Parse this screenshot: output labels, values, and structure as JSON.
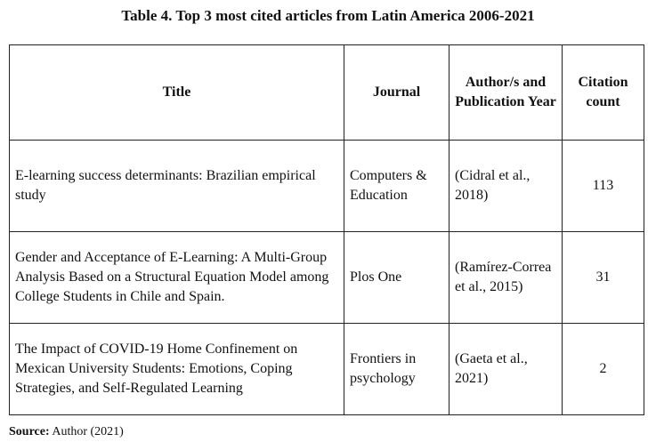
{
  "caption": "Table 4. Top 3 most cited articles from Latin America 2006-2021",
  "headers": [
    "Title",
    "Journal",
    "Author/s and Publication Year",
    "Citation count"
  ],
  "rows": [
    {
      "title": "E-learning success determinants: Brazilian empirical study",
      "journal": "Computers & Education",
      "author": "(Cidral et al., 2018)",
      "citations": "113"
    },
    {
      "title": "Gender and Acceptance of E-Learning: A Multi-Group Analysis Based on a Structural Equation Model among College Students in Chile and Spain.",
      "journal": "Plos One",
      "author": "(Ramírez-Correa et al., 2015)",
      "citations": "31"
    },
    {
      "title": "The Impact of COVID-19 Home Confinement on Mexican University Students: Emotions, Coping Strategies, and Self-Regulated Learning",
      "journal": "Frontiers in psychology",
      "author": "(Gaeta et al., 2021)",
      "citations": "2"
    }
  ],
  "source": {
    "label": "Source:",
    "text": " Author (2021)"
  }
}
